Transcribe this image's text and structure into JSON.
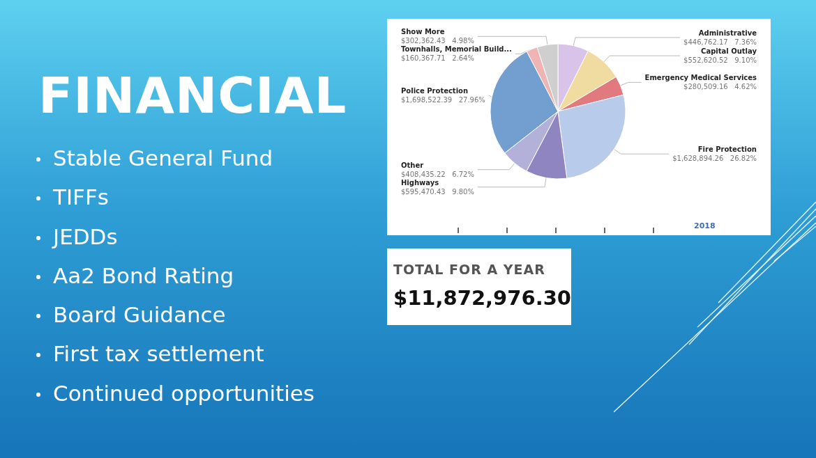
{
  "chart_data": {
    "type": "pie",
    "title": "FINANCIAL",
    "categories": [
      "Administrative",
      "Capital Outlay",
      "Emergency Medical Services",
      "Fire Protection",
      "Highways",
      "Other",
      "Police Protection",
      "Townhalls, Memorial Build...",
      "Show More"
    ],
    "values": [
      446762.17,
      552620.52,
      280509.16,
      1628894.26,
      595470.43,
      408435.22,
      1698522.39,
      160367.71,
      302362.43
    ],
    "value_labels": [
      "$446,762.17   7.36%",
      "$552,620.52   9.10%",
      "$280,509.16   4.62%",
      "$1,628,894.26   26.82%",
      "$595,470.43   9.80%",
      "$408,435.22   6.72%",
      "$1,698,522.39   27.96%",
      "$160,367.71   2.64%",
      "$302,362.43   4.98%"
    ],
    "colors": [
      "#d9c3e8",
      "#f0dca0",
      "#e07a7f",
      "#b8cbeb",
      "#8f85c0",
      "#b3b0da",
      "#729fcf",
      "#f0b4b4",
      "#cfcfcf"
    ],
    "annotations": [
      "Stable General Fund",
      "TIFFs",
      "JEDDs",
      "Aa2 Bond Rating",
      "Board Guidance",
      "First tax settlement",
      "Continued opportunities",
      "2018",
      "TOTAL FOR A YEAR",
      "$11,872,976.30"
    ],
    "legend": false
  }
}
